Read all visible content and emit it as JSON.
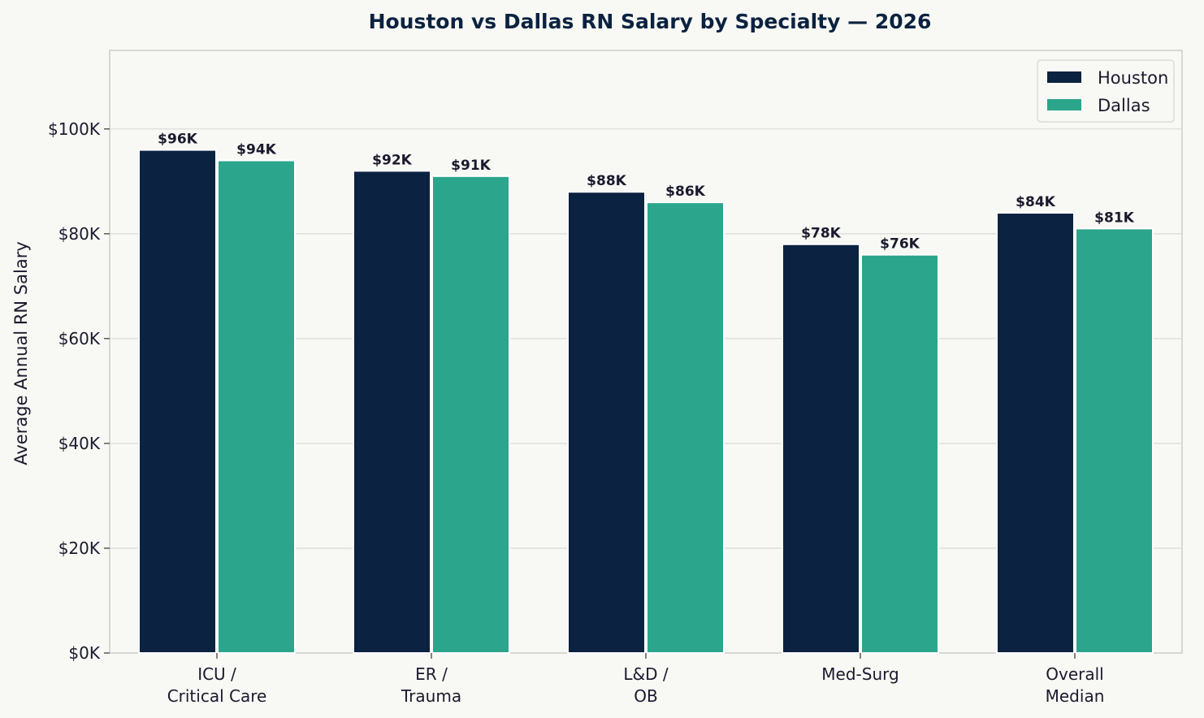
{
  "chart_data": {
    "type": "bar",
    "title": "Houston vs Dallas RN Salary by Specialty — 2026",
    "xlabel": "",
    "ylabel": "Average Annual RN Salary",
    "categories": [
      [
        "ICU /",
        "Critical Care"
      ],
      [
        "ER /",
        "Trauma"
      ],
      [
        "L&D /",
        "OB"
      ],
      [
        "Med-Surg"
      ],
      [
        "Overall",
        "Median"
      ]
    ],
    "series": [
      {
        "name": "Houston",
        "color": "#0b2240",
        "values": [
          96,
          92,
          88,
          78,
          84
        ],
        "labels": [
          "$96K",
          "$92K",
          "$88K",
          "$78K",
          "$84K"
        ]
      },
      {
        "name": "Dallas",
        "color": "#2ca58d",
        "values": [
          94,
          91,
          86,
          76,
          81
        ],
        "labels": [
          "$94K",
          "$91K",
          "$86K",
          "$76K",
          "$81K"
        ]
      }
    ],
    "unit": "thousands USD",
    "ylim": [
      0,
      115
    ],
    "yticks": [
      0,
      20,
      40,
      60,
      80,
      100
    ],
    "ytick_labels": [
      "$0K",
      "$20K",
      "$40K",
      "$60K",
      "$80K",
      "$100K"
    ],
    "grid": true,
    "legend_position": "top-right"
  }
}
